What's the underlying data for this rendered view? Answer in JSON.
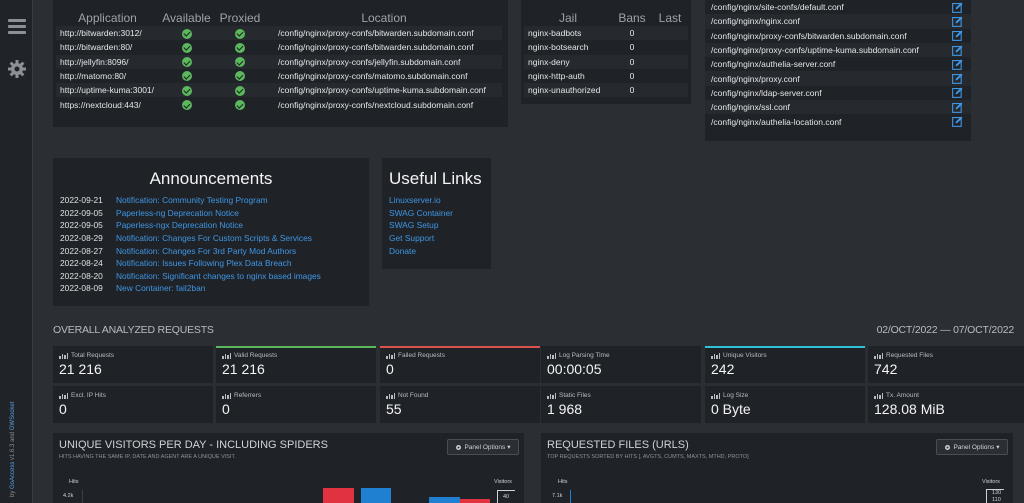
{
  "proxy_table": {
    "headers": [
      "Application",
      "Available",
      "Proxied",
      "Location"
    ],
    "rows": [
      {
        "app": "http://bitwarden:3012/",
        "location": "/config/nginx/proxy-confs/bitwarden.subdomain.conf"
      },
      {
        "app": "http://bitwarden:80/",
        "location": "/config/nginx/proxy-confs/bitwarden.subdomain.conf"
      },
      {
        "app": "http://jellyfin:8096/",
        "location": "/config/nginx/proxy-confs/jellyfin.subdomain.conf"
      },
      {
        "app": "http://matomo:80/",
        "location": "/config/nginx/proxy-confs/matomo.subdomain.conf"
      },
      {
        "app": "http://uptime-kuma:3001/",
        "location": "/config/nginx/proxy-confs/uptime-kuma.subdomain.conf"
      },
      {
        "app": "https://nextcloud:443/",
        "location": "/config/nginx/proxy-confs/nextcloud.subdomain.conf"
      }
    ]
  },
  "jail_table": {
    "headers": [
      "Jail",
      "Bans",
      "Last"
    ],
    "rows": [
      {
        "jail": "nginx-badbots",
        "bans": "0",
        "last": ""
      },
      {
        "jail": "nginx-botsearch",
        "bans": "0",
        "last": ""
      },
      {
        "jail": "nginx-deny",
        "bans": "0",
        "last": ""
      },
      {
        "jail": "nginx-http-auth",
        "bans": "0",
        "last": ""
      },
      {
        "jail": "nginx-unauthorized",
        "bans": "0",
        "last": ""
      }
    ]
  },
  "config_files": [
    "/config/nginx/site-confs/default.conf",
    "/config/nginx/nginx.conf",
    "/config/nginx/proxy-confs/bitwarden.subdomain.conf",
    "/config/nginx/proxy-confs/uptime-kuma.subdomain.conf",
    "/config/nginx/authelia-server.conf",
    "/config/nginx/proxy.conf",
    "/config/nginx/ldap-server.conf",
    "/config/nginx/ssl.conf",
    "/config/nginx/authelia-location.conf"
  ],
  "announcements": {
    "title": "Announcements",
    "items": [
      {
        "date": "2022-09-21",
        "text": "Notification: Community Testing Program"
      },
      {
        "date": "2022-09-05",
        "text": "Paperless-ng Deprecation Notice"
      },
      {
        "date": "2022-09-05",
        "text": "Paperless-ngx Deprecation Notice"
      },
      {
        "date": "2022-08-29",
        "text": "Notification: Changes For Custom Scripts & Services"
      },
      {
        "date": "2022-08-27",
        "text": "Notification: Changes For 3rd Party Mod Authors"
      },
      {
        "date": "2022-08-24",
        "text": "Notification: Issues Following Plex Data Breach"
      },
      {
        "date": "2022-08-20",
        "text": "Notification: Significant changes to nginx based images"
      },
      {
        "date": "2022-08-09",
        "text": "New Container: fail2ban"
      }
    ]
  },
  "useful_links": {
    "title": "Useful Links",
    "items": [
      "Linuxserver.io",
      "SWAG Container",
      "SWAG Setup",
      "Get Support",
      "Donate"
    ]
  },
  "overall": {
    "title": "OVERALL ANALYZED REQUESTS",
    "date_range": "02/OCT/2022 — 07/OCT/2022",
    "cards": [
      {
        "label": "Total Requests",
        "value": "21 216",
        "accent": ""
      },
      {
        "label": "Valid Requests",
        "value": "21 216",
        "accent": "#5cb85c"
      },
      {
        "label": "Failed Requests",
        "value": "0",
        "accent": "#d9534f"
      },
      {
        "label": "Log Parsing Time",
        "value": "00:00:05",
        "accent": ""
      },
      {
        "label": "Unique Visitors",
        "value": "242",
        "accent": "#2fc1d6"
      },
      {
        "label": "Requested Files",
        "value": "742",
        "accent": ""
      },
      {
        "label": "Excl. IP Hits",
        "value": "0",
        "accent": ""
      },
      {
        "label": "Referrers",
        "value": "0",
        "accent": ""
      },
      {
        "label": "Not Found",
        "value": "55",
        "accent": ""
      },
      {
        "label": "Static Files",
        "value": "1 968",
        "accent": ""
      },
      {
        "label": "Log Size",
        "value": "0 Byte",
        "accent": ""
      },
      {
        "label": "Tx. Amount",
        "value": "128.08 MiB",
        "accent": ""
      }
    ]
  },
  "visitors_panel": {
    "title": "UNIQUE VISITORS PER DAY - INCLUDING SPIDERS",
    "subtitle": "HITS HAVING THE SAME IP, DATE AND AGENT ARE A UNIQUE VISIT.",
    "options_label": "Panel Options",
    "axis_left": "Hits",
    "axis_right": "Visitors",
    "tick_left": "4.2k",
    "tick_right": "40"
  },
  "files_panel": {
    "title": "REQUESTED FILES (URLS)",
    "subtitle": "TOP REQUESTS SORTED BY HITS [, AVGTS, CUMTS, MAXTS, MTHD, PROTO]",
    "options_label": "Panel Options",
    "axis_left": "Hits",
    "axis_right": "Visitors",
    "tick_left": "7.1k",
    "tick_right_1": "130",
    "tick_right_2": "110"
  },
  "sidebar": {
    "credit_prefix": "by ",
    "credit_goaccess": "GoAccess",
    "credit_version": " v1.6.3",
    "credit_and": " and ",
    "credit_gwsocket": "GWSocket"
  },
  "colors": {
    "green": "#5cb85c",
    "red": "#d9534f",
    "cyan": "#2fc1d6",
    "link": "#3f97e6",
    "bar_red": "#e0323f",
    "bar_blue": "#1f7fd0"
  }
}
